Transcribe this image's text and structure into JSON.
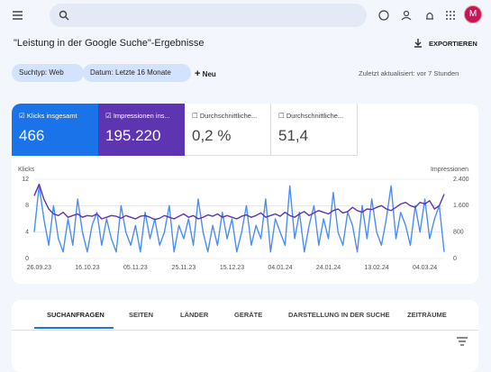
{
  "header": {
    "avatar": "M"
  },
  "page": {
    "title": "\"Leistung in der Google Suche\"-Ergebnisse",
    "export": "EXPORTIEREN"
  },
  "filters": {
    "chips": [
      "Suchtyp: Web",
      "Datum: Letzte 16 Monate"
    ],
    "new": "Neu",
    "updated": "Zuletzt aktualisiert: vor 7 Stunden"
  },
  "cards": [
    {
      "value": "466"
    },
    {
      "value": "195.220"
    },
    {
      "label": "Durchschnittliche...",
      "value": "0,2 %"
    },
    {
      "label": "Durchschnittliche...",
      "value": "51,4"
    }
  ],
  "chart_data": {
    "type": "line",
    "y_label": "Klicks",
    "y2_label": "Impressionen",
    "categories": [
      null,
      "26.09.23",
      null,
      null,
      null,
      null,
      null,
      null,
      null,
      null,
      null,
      "16.10.23",
      null,
      null,
      null,
      null,
      null,
      null,
      null,
      null,
      null,
      "05.11.23",
      null,
      null,
      null,
      null,
      null,
      null,
      null,
      null,
      null,
      "25.11.23",
      null,
      null,
      null,
      null,
      null,
      null,
      null,
      null,
      null,
      "15.12.23",
      null,
      null,
      null,
      null,
      null,
      null,
      null,
      null,
      null,
      "04.01.24",
      null,
      null,
      null,
      null,
      null,
      null,
      null,
      null,
      null,
      "24.01.24",
      null,
      null,
      null,
      null,
      null,
      null,
      null,
      null,
      null,
      "13.02.24",
      null,
      null,
      null,
      null,
      null,
      null,
      null,
      null,
      null,
      "04.03.24",
      null,
      null,
      null,
      null
    ],
    "ylim": [
      0,
      12
    ],
    "yticks": [
      0,
      4,
      8,
      12
    ],
    "y2lim": [
      0,
      2400
    ],
    "y2ticks": [
      0,
      800,
      {
        "value": 1600,
        "label": "1.600"
      },
      {
        "value": 2400,
        "label": "2.400"
      }
    ],
    "grid": true,
    "series": [
      {
        "name": "Klicks insgesamt",
        "color": "#4c8df6",
        "values": [
          4,
          11,
          6,
          2,
          8,
          3,
          1,
          6,
          2,
          9,
          4,
          1,
          5,
          7,
          2,
          6,
          3,
          1,
          8,
          4,
          2,
          5,
          1,
          7,
          3,
          6,
          2,
          4,
          8,
          1,
          5,
          3,
          6,
          2,
          9,
          4,
          1,
          5,
          2,
          7,
          3,
          6,
          1,
          4,
          8,
          2,
          5,
          3,
          9,
          1,
          6,
          4,
          2,
          11,
          3,
          7,
          1,
          5,
          8,
          2,
          6,
          3,
          10,
          4,
          2,
          7,
          5,
          1,
          8,
          3,
          9,
          4,
          2,
          6,
          11,
          3,
          7,
          5,
          2,
          8,
          4,
          9,
          3,
          6,
          8,
          1
        ]
      },
      {
        "name": "Impressionen ins...",
        "color": "#5e35b1",
        "axis": "y2",
        "values": [
          1900,
          2250,
          1800,
          1500,
          1350,
          1300,
          1400,
          1250,
          1300,
          1350,
          1250,
          1300,
          1280,
          1350,
          1200,
          1250,
          1300,
          1280,
          1220,
          1300,
          1250,
          1200,
          1280,
          1300,
          1250,
          1180,
          1220,
          1300,
          1250,
          1200,
          1280,
          1350,
          1250,
          1300,
          1200,
          1250,
          1320,
          1280,
          1350,
          1250,
          1300,
          1250,
          1200,
          1280,
          1320,
          1250,
          1300,
          1380,
          1250,
          1300,
          1350,
          1280,
          1400,
          1300,
          1250,
          1350,
          1420,
          1300,
          1380,
          1450,
          1400,
          1350,
          1450,
          1500,
          1380,
          1420,
          1550,
          1450,
          1400,
          1500,
          1480,
          1550,
          1600,
          1500,
          1450,
          1550,
          1650,
          1700,
          1600,
          1550,
          1700,
          1650,
          1750,
          1500,
          1600,
          1950
        ]
      }
    ]
  },
  "tabs": [
    "SUCHANFRAGEN",
    "SEITEN",
    "LÄNDER",
    "GERÄTE",
    "DARSTELLUNG IN DER SUCHE",
    "ZEITRÄUME"
  ]
}
